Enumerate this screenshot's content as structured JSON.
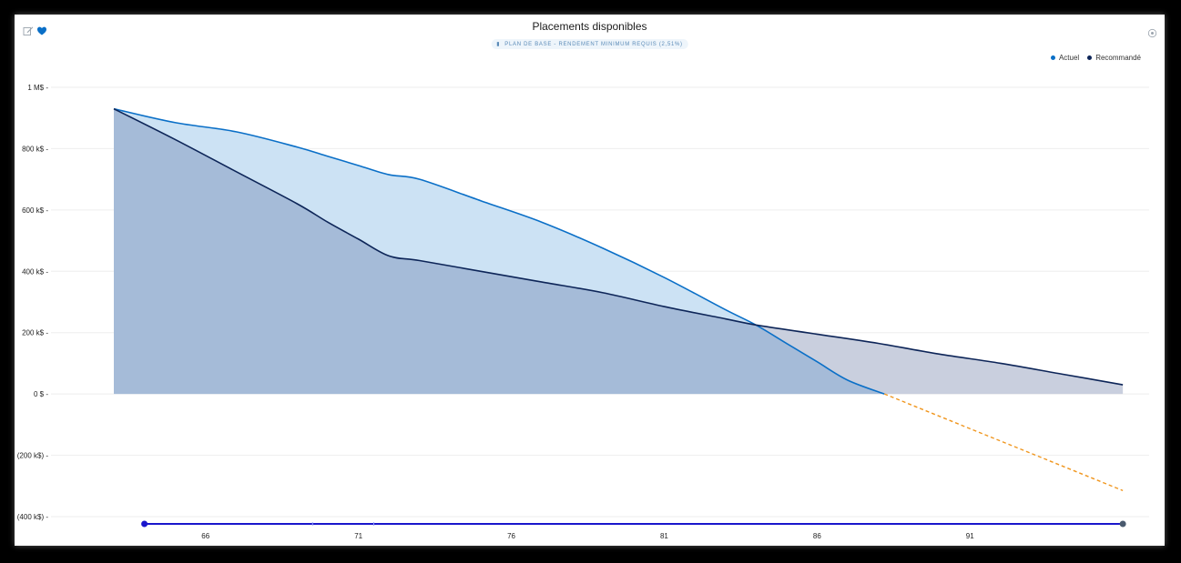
{
  "header": {
    "title": "Placements disponibles",
    "subtitle": "PLAN DE BASE - RENDEMENT MINIMUM REQUIS (2,51%)"
  },
  "icons": {
    "edit": "edit-icon",
    "favorite": "heart-icon",
    "settings": "settings-icon",
    "subtitle": "bar-chart-icon"
  },
  "chart_data": {
    "type": "area",
    "title": "Placements disponibles",
    "subtitle": "PLAN DE BASE - RENDEMENT MINIMUM REQUIS (2,51%)",
    "xlabel": "",
    "ylabel": "",
    "x_ticks": [
      66,
      71,
      76,
      81,
      86,
      91
    ],
    "xlim": [
      61.6,
      96.8
    ],
    "y_ticks": [
      {
        "value": 1000000,
        "label": "1 M$ -"
      },
      {
        "value": 800000,
        "label": "800 k$ -"
      },
      {
        "value": 600000,
        "label": "600 k$ -"
      },
      {
        "value": 400000,
        "label": "400 k$ -"
      },
      {
        "value": 200000,
        "label": "200 k$ -"
      },
      {
        "value": 0,
        "label": "0 $ -"
      },
      {
        "value": -200000,
        "label": "(200 k$) -"
      },
      {
        "value": -400000,
        "label": "(400 k$) -"
      }
    ],
    "ylim": [
      -400000,
      1000000
    ],
    "grid": true,
    "legend": {
      "placement": "top-right"
    },
    "series": [
      {
        "name": "Actuel",
        "color": "#0a6fc7",
        "fill": "#cce2f4",
        "x": [
          63,
          65,
          67,
          69,
          70,
          71,
          72,
          73,
          75,
          77,
          79,
          81,
          83,
          84,
          85,
          86,
          87,
          88.2
        ],
        "y": [
          930000,
          885000,
          855000,
          805000,
          775000,
          745000,
          715000,
          700000,
          630000,
          560000,
          475000,
          380000,
          275000,
          225000,
          165000,
          105000,
          45000,
          0
        ]
      },
      {
        "name": "Recommandé",
        "color": "#0d2558",
        "fill": "#c9cfde",
        "x": [
          63,
          65,
          67,
          69,
          70,
          71,
          72,
          73,
          75,
          77,
          79,
          81,
          83,
          84,
          86,
          88,
          90,
          92,
          94,
          96
        ],
        "y": [
          930000,
          830000,
          725000,
          620000,
          560000,
          505000,
          450000,
          435000,
          400000,
          365000,
          330000,
          285000,
          245000,
          225000,
          195000,
          165000,
          130000,
          100000,
          65000,
          30000
        ]
      },
      {
        "name": "Actuel (projection)",
        "color": "#f0961e",
        "style": "dashed",
        "x": [
          88.2,
          96
        ],
        "y": [
          0,
          -315000
        ]
      }
    ],
    "overlap_fill": "#a5bbd8",
    "range_slider": {
      "color": "#1a16cc",
      "start": 64,
      "end": 96,
      "end_handle_color": "#4a5a6e",
      "markers": [
        69.5,
        71.5
      ]
    }
  }
}
